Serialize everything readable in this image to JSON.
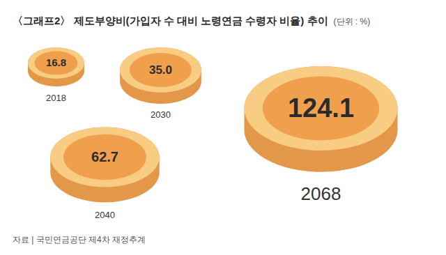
{
  "chart_data": {
    "type": "bubble",
    "title": "〈그래프2〉 제도부양비(가입자 수 대비 노령연금 수령자 비율) 추이",
    "subtitle": "(단위 : %)",
    "caption": "자료 | 국민연금공단 제4차 재정추계",
    "categories": [
      "2018",
      "2030",
      "2040",
      "2068"
    ],
    "values": [
      16.8,
      35.0,
      62.7,
      124.1
    ],
    "value_labels": [
      "16.8",
      "35.0",
      "62.7",
      "124.1"
    ],
    "data_labels": true,
    "color": "#f09f4c",
    "tick_labels": false
  }
}
